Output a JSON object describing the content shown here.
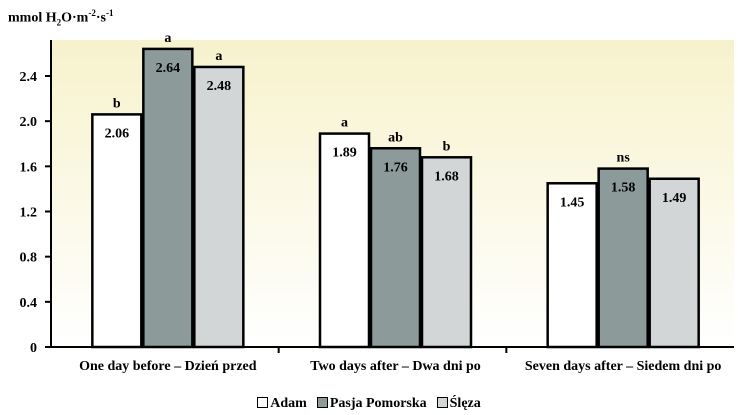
{
  "chart_data": {
    "type": "bar",
    "ylabel_parts": {
      "prefix": "mmol H",
      "sub": "2",
      "mid": "O·m",
      "sup1": "-2",
      "mid2": "·s",
      "sup2": "-1"
    },
    "categories": [
      "One day before – Dzień przed",
      "Two days after – Dwa dni po",
      "Seven days after – Siedem dni po"
    ],
    "series": [
      {
        "name": "Adam",
        "values": [
          2.06,
          1.89,
          1.45
        ],
        "labels": [
          "2.06",
          "1.89",
          "1.45"
        ],
        "color": "#ffffff"
      },
      {
        "name": "Pasja Pomorska",
        "values": [
          2.64,
          1.76,
          1.58
        ],
        "labels": [
          "2.64",
          "1.76",
          "1.58"
        ],
        "color": "#8c9b99"
      },
      {
        "name": "Ślęza",
        "values": [
          2.48,
          1.68,
          1.49
        ],
        "labels": [
          "2.48",
          "1.68",
          "1.49"
        ],
        "color": "#d3d6d6"
      }
    ],
    "significance": [
      [
        "b",
        "a",
        "a"
      ],
      [
        "a",
        "ab",
        "b"
      ],
      [
        "",
        "ns",
        ""
      ]
    ],
    "yticks": [
      "0",
      "0.4",
      "0.8",
      "1.2",
      "1.6",
      "2.0",
      "2.4"
    ],
    "ytick_values": [
      0,
      0.4,
      0.8,
      1.2,
      1.6,
      2.0,
      2.4
    ],
    "ylim": [
      0,
      2.8
    ],
    "grid": false,
    "legend_position": "bottom",
    "background_gradient": [
      "#ffffff",
      "#f7f2cc"
    ]
  }
}
